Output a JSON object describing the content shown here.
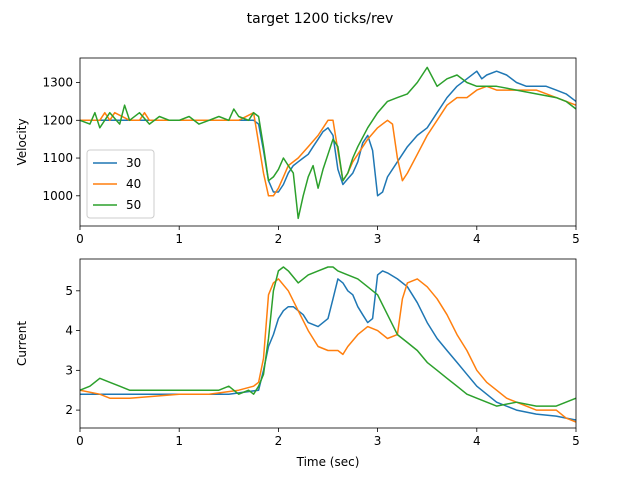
{
  "figure": {
    "title": "target 1200 ticks/rev"
  },
  "colors": {
    "30": "#1f77b4",
    "40": "#ff7f0e",
    "50": "#2ca02c"
  },
  "chart_data": [
    {
      "type": "line",
      "xlabel": "",
      "ylabel": "Velocity",
      "xlim": [
        0,
        5
      ],
      "ylim": [
        920,
        1365
      ],
      "xticks": [
        0,
        1,
        2,
        3,
        4,
        5
      ],
      "yticks": [
        1000,
        1100,
        1200,
        1300
      ],
      "legend": {
        "placement": "lower-left",
        "entries": [
          "30",
          "40",
          "50"
        ]
      },
      "series": [
        {
          "name": "30",
          "x": [
            0,
            0.5,
            1.0,
            1.5,
            1.75,
            1.8,
            1.85,
            1.9,
            1.95,
            2.0,
            2.05,
            2.1,
            2.15,
            2.2,
            2.25,
            2.3,
            2.35,
            2.4,
            2.45,
            2.5,
            2.55,
            2.6,
            2.65,
            2.7,
            2.75,
            2.8,
            2.85,
            2.9,
            2.95,
            3.0,
            3.05,
            3.1,
            3.2,
            3.3,
            3.4,
            3.5,
            3.6,
            3.7,
            3.8,
            3.9,
            4.0,
            4.05,
            4.1,
            4.2,
            4.3,
            4.4,
            4.5,
            4.6,
            4.7,
            4.8,
            4.9,
            5.0
          ],
          "y": [
            1200,
            1200,
            1200,
            1200,
            1200,
            1190,
            1120,
            1040,
            1010,
            1010,
            1030,
            1060,
            1080,
            1090,
            1100,
            1110,
            1130,
            1150,
            1170,
            1180,
            1160,
            1070,
            1030,
            1045,
            1060,
            1090,
            1140,
            1160,
            1120,
            1000,
            1010,
            1050,
            1090,
            1130,
            1160,
            1180,
            1220,
            1260,
            1290,
            1310,
            1330,
            1310,
            1320,
            1330,
            1320,
            1300,
            1290,
            1290,
            1290,
            1280,
            1270,
            1250
          ]
        },
        {
          "name": "40",
          "x": [
            0,
            0.2,
            0.25,
            0.3,
            0.35,
            0.5,
            0.6,
            0.65,
            0.7,
            1.0,
            1.3,
            1.6,
            1.75,
            1.8,
            1.85,
            1.9,
            1.95,
            2.0,
            2.05,
            2.1,
            2.2,
            2.3,
            2.4,
            2.5,
            2.55,
            2.6,
            2.65,
            2.7,
            2.75,
            2.8,
            2.9,
            3.0,
            3.1,
            3.15,
            3.2,
            3.25,
            3.3,
            3.4,
            3.5,
            3.6,
            3.7,
            3.8,
            3.9,
            4.0,
            4.1,
            4.2,
            4.4,
            4.6,
            4.8,
            5.0
          ],
          "y": [
            1200,
            1200,
            1220,
            1200,
            1220,
            1200,
            1200,
            1220,
            1200,
            1200,
            1200,
            1200,
            1220,
            1140,
            1060,
            1000,
            1000,
            1020,
            1050,
            1080,
            1100,
            1130,
            1160,
            1200,
            1200,
            1120,
            1040,
            1060,
            1090,
            1110,
            1150,
            1180,
            1200,
            1190,
            1100,
            1040,
            1060,
            1110,
            1160,
            1200,
            1240,
            1260,
            1260,
            1280,
            1290,
            1280,
            1280,
            1280,
            1260,
            1240
          ]
        },
        {
          "name": "50",
          "x": [
            0,
            0.1,
            0.15,
            0.2,
            0.3,
            0.4,
            0.45,
            0.5,
            0.6,
            0.7,
            0.8,
            0.9,
            1.0,
            1.1,
            1.2,
            1.3,
            1.4,
            1.5,
            1.55,
            1.6,
            1.7,
            1.75,
            1.8,
            1.85,
            1.9,
            1.95,
            2.0,
            2.05,
            2.1,
            2.15,
            2.2,
            2.25,
            2.3,
            2.35,
            2.4,
            2.45,
            2.5,
            2.55,
            2.6,
            2.65,
            2.7,
            2.75,
            2.8,
            2.9,
            3.0,
            3.1,
            3.2,
            3.3,
            3.4,
            3.45,
            3.5,
            3.6,
            3.7,
            3.8,
            3.9,
            4.0,
            4.2,
            4.4,
            4.6,
            4.8,
            4.9,
            5.0
          ],
          "y": [
            1200,
            1190,
            1220,
            1180,
            1220,
            1190,
            1240,
            1200,
            1220,
            1190,
            1210,
            1200,
            1200,
            1210,
            1190,
            1200,
            1210,
            1200,
            1230,
            1210,
            1200,
            1220,
            1210,
            1130,
            1040,
            1050,
            1070,
            1100,
            1080,
            1060,
            940,
            1000,
            1050,
            1080,
            1020,
            1070,
            1110,
            1150,
            1130,
            1040,
            1060,
            1100,
            1130,
            1180,
            1220,
            1250,
            1260,
            1270,
            1300,
            1320,
            1340,
            1290,
            1310,
            1320,
            1300,
            1290,
            1290,
            1280,
            1270,
            1260,
            1250,
            1230
          ]
        }
      ]
    },
    {
      "type": "line",
      "xlabel": "Time (sec)",
      "ylabel": "Current",
      "xlim": [
        0,
        5
      ],
      "ylim": [
        1.55,
        5.8
      ],
      "xticks": [
        0,
        1,
        2,
        3,
        4,
        5
      ],
      "yticks": [
        2,
        3,
        4,
        5
      ],
      "series": [
        {
          "name": "30",
          "x": [
            0,
            0.5,
            1.0,
            1.5,
            1.8,
            1.85,
            1.9,
            1.95,
            2.0,
            2.05,
            2.1,
            2.15,
            2.2,
            2.25,
            2.3,
            2.4,
            2.5,
            2.55,
            2.6,
            2.65,
            2.7,
            2.75,
            2.8,
            2.85,
            2.9,
            2.95,
            3.0,
            3.05,
            3.1,
            3.2,
            3.3,
            3.4,
            3.5,
            3.6,
            3.7,
            3.8,
            3.9,
            4.0,
            4.1,
            4.2,
            4.4,
            4.6,
            4.8,
            4.9,
            5.0
          ],
          "y": [
            2.4,
            2.4,
            2.4,
            2.4,
            2.5,
            3.0,
            3.6,
            3.9,
            4.3,
            4.5,
            4.6,
            4.6,
            4.5,
            4.4,
            4.2,
            4.1,
            4.3,
            4.8,
            5.3,
            5.2,
            5.0,
            4.9,
            4.6,
            4.4,
            4.2,
            4.3,
            5.4,
            5.5,
            5.45,
            5.3,
            5.1,
            4.7,
            4.2,
            3.8,
            3.5,
            3.2,
            2.9,
            2.6,
            2.4,
            2.2,
            2.0,
            1.9,
            1.85,
            1.8,
            1.75
          ]
        },
        {
          "name": "40",
          "x": [
            0,
            0.2,
            0.3,
            0.5,
            1.0,
            1.3,
            1.6,
            1.75,
            1.8,
            1.85,
            1.9,
            1.95,
            2.0,
            2.1,
            2.2,
            2.3,
            2.4,
            2.5,
            2.6,
            2.65,
            2.7,
            2.8,
            2.9,
            3.0,
            3.1,
            3.2,
            3.25,
            3.3,
            3.4,
            3.5,
            3.6,
            3.7,
            3.8,
            3.9,
            4.0,
            4.1,
            4.2,
            4.3,
            4.4,
            4.6,
            4.8,
            4.9,
            5.0
          ],
          "y": [
            2.5,
            2.4,
            2.3,
            2.3,
            2.4,
            2.4,
            2.5,
            2.6,
            2.7,
            3.3,
            4.9,
            5.2,
            5.3,
            5.0,
            4.5,
            4.0,
            3.6,
            3.5,
            3.5,
            3.4,
            3.6,
            3.9,
            4.1,
            4.0,
            3.8,
            3.9,
            4.8,
            5.2,
            5.3,
            5.1,
            4.8,
            4.4,
            3.9,
            3.5,
            3.0,
            2.7,
            2.5,
            2.3,
            2.2,
            2.0,
            2.0,
            1.8,
            1.7
          ]
        },
        {
          "name": "50",
          "x": [
            0,
            0.1,
            0.2,
            0.3,
            0.4,
            0.5,
            0.6,
            0.8,
            1.0,
            1.2,
            1.4,
            1.5,
            1.6,
            1.7,
            1.75,
            1.8,
            1.85,
            1.9,
            1.95,
            2.0,
            2.05,
            2.1,
            2.2,
            2.3,
            2.4,
            2.5,
            2.55,
            2.6,
            2.7,
            2.8,
            2.9,
            3.0,
            3.1,
            3.2,
            3.3,
            3.4,
            3.5,
            3.6,
            3.7,
            3.8,
            3.9,
            4.0,
            4.2,
            4.4,
            4.6,
            4.8,
            5.0
          ],
          "y": [
            2.5,
            2.6,
            2.8,
            2.7,
            2.6,
            2.5,
            2.5,
            2.5,
            2.5,
            2.5,
            2.5,
            2.6,
            2.4,
            2.5,
            2.4,
            2.6,
            2.9,
            3.8,
            5.0,
            5.5,
            5.6,
            5.5,
            5.2,
            5.4,
            5.5,
            5.6,
            5.6,
            5.5,
            5.4,
            5.3,
            5.1,
            4.9,
            4.4,
            3.9,
            3.7,
            3.5,
            3.2,
            3.0,
            2.8,
            2.6,
            2.4,
            2.3,
            2.1,
            2.2,
            2.1,
            2.1,
            2.3
          ]
        }
      ]
    }
  ]
}
